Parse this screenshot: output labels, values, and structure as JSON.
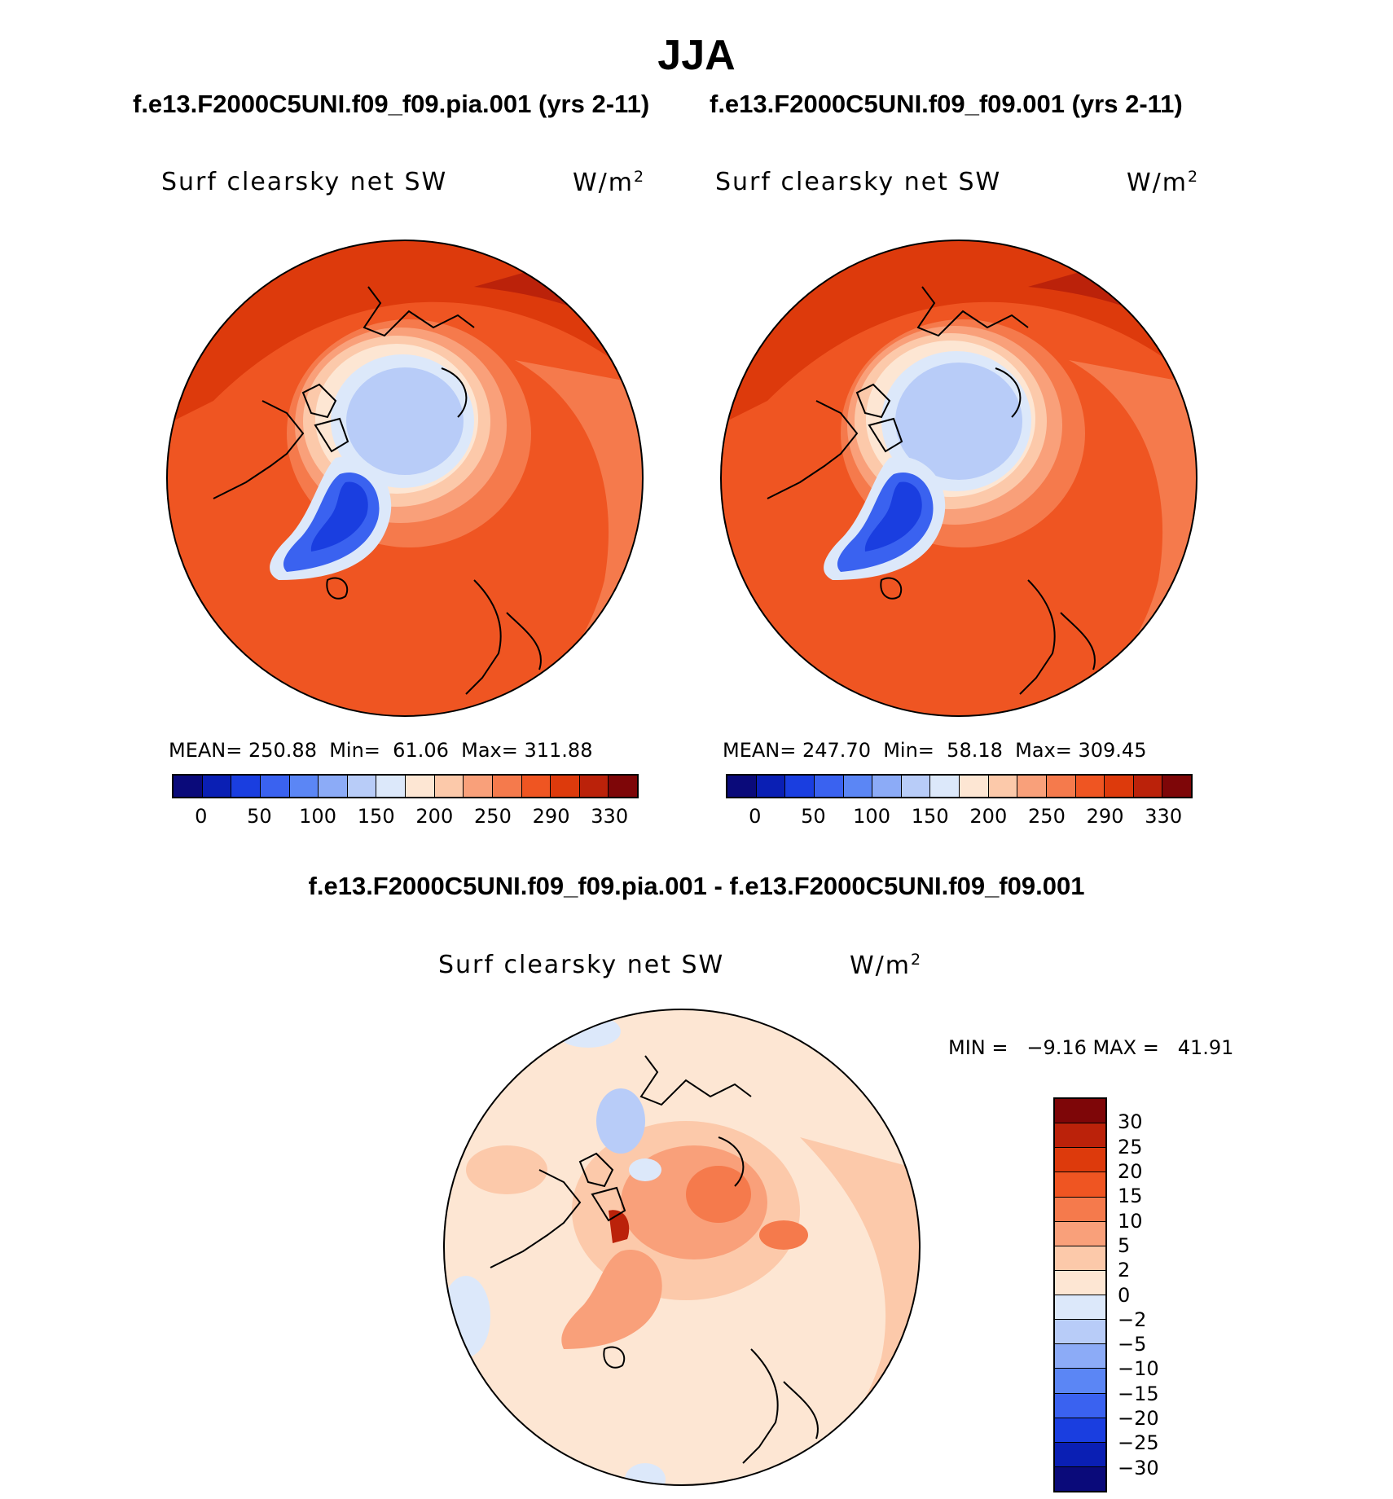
{
  "title": "JJA",
  "panels": [
    {
      "case": "f.e13.F2000C5UNI.f09_f09.pia.001 (yrs 2-11)",
      "variable": "Surf clearsky net SW",
      "units_base": "W/m",
      "units_exp": "2",
      "stats": "MEAN= 250.88  Min=  61.06  Max= 311.88"
    },
    {
      "case": "f.e13.F2000C5UNI.f09_f09.001 (yrs 2-11)",
      "variable": "Surf clearsky net SW",
      "units_base": "W/m",
      "units_exp": "2",
      "stats": "MEAN= 247.70  Min=  58.18  Max= 309.45"
    }
  ],
  "colorbar": {
    "ticks": [
      "0",
      "50",
      "100",
      "150",
      "200",
      "250",
      "290",
      "330"
    ],
    "colors": [
      "#0a0a7a",
      "#0a1fb4",
      "#1a3ee0",
      "#3a62f0",
      "#5b86f5",
      "#8cabf7",
      "#b8ccf8",
      "#dce8fa",
      "#fde6d3",
      "#fcc9aa",
      "#f9a07a",
      "#f57a4c",
      "#ef5522",
      "#dd3a0c",
      "#bb220a",
      "#7e0608"
    ]
  },
  "difference": {
    "title": "f.e13.F2000C5UNI.f09_f09.pia.001 - f.e13.F2000C5UNI.f09_f09.001",
    "variable": "Surf clearsky net SW",
    "units_base": "W/m",
    "units_exp": "2",
    "minmax": "MIN =   −9.16 MAX =   41.91",
    "colorbar_ticks": [
      "30",
      "25",
      "20",
      "15",
      "10",
      "5",
      "2",
      "0",
      "−2",
      "−5",
      "−10",
      "−15",
      "−20",
      "−25",
      "−30"
    ],
    "colorbar_colors": [
      "#7e0608",
      "#bb220a",
      "#dd3a0c",
      "#ef5522",
      "#f57a4c",
      "#f9a07a",
      "#fcc9aa",
      "#fde6d3",
      "#dce8fa",
      "#b8ccf8",
      "#8cabf7",
      "#5b86f5",
      "#3a62f0",
      "#1a3ee0",
      "#0a1fb4",
      "#0a0a7a"
    ]
  }
}
